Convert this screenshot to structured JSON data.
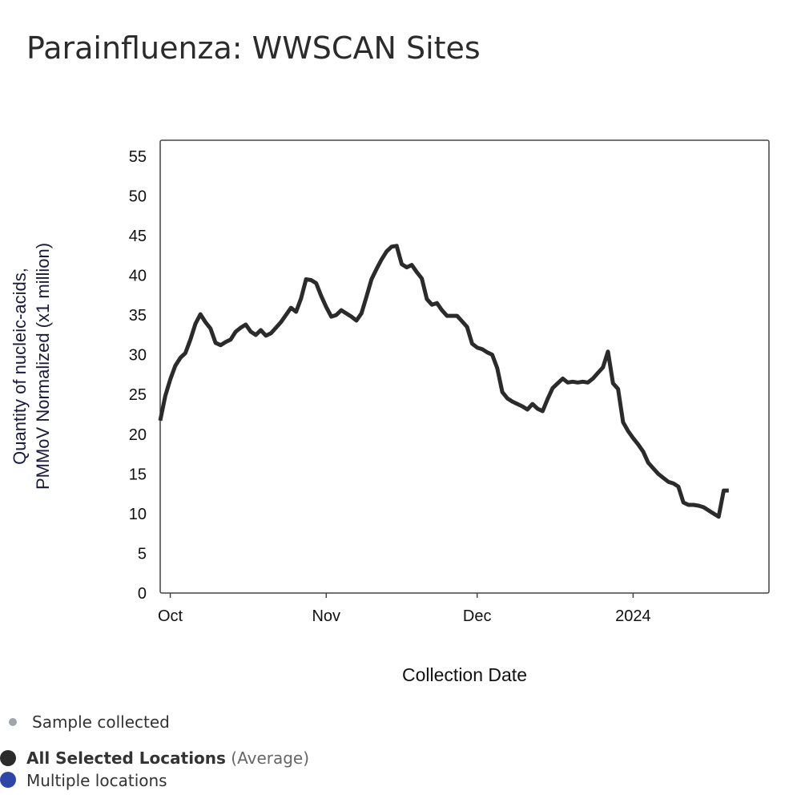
{
  "chart_data": {
    "type": "line",
    "title": "Parainfluenza: WWSCAN Sites",
    "xlabel": "Collection Date",
    "ylabel_lines": [
      "Quantity of nucleic-acids,",
      "PMMoV Normalized (x1 million)"
    ],
    "ylim": [
      0,
      57
    ],
    "yticks": [
      0,
      5,
      10,
      15,
      20,
      25,
      30,
      35,
      40,
      45,
      50,
      55
    ],
    "xlim": [
      "2023-09-29",
      "2024-01-28"
    ],
    "xticks": [
      {
        "label": "Oct",
        "date": "2023-10-01"
      },
      {
        "label": "Nov",
        "date": "2023-11-01"
      },
      {
        "label": "Dec",
        "date": "2023-12-01"
      },
      {
        "label": "2024",
        "date": "2024-01-01"
      }
    ],
    "grid": false,
    "series": [
      {
        "name": "All Selected Locations",
        "color": "#2b2b2b",
        "points": [
          [
            "2023-09-29",
            21.7
          ],
          [
            "2023-09-30",
            24.8
          ],
          [
            "2023-10-01",
            26.9
          ],
          [
            "2023-10-02",
            28.6
          ],
          [
            "2023-10-03",
            29.6
          ],
          [
            "2023-10-04",
            30.2
          ],
          [
            "2023-10-05",
            31.9
          ],
          [
            "2023-10-06",
            33.9
          ],
          [
            "2023-10-07",
            35.1
          ],
          [
            "2023-10-08",
            34.1
          ],
          [
            "2023-10-09",
            33.3
          ],
          [
            "2023-10-10",
            31.5
          ],
          [
            "2023-10-11",
            31.2
          ],
          [
            "2023-10-12",
            31.6
          ],
          [
            "2023-10-13",
            31.9
          ],
          [
            "2023-10-14",
            32.9
          ],
          [
            "2023-10-15",
            33.4
          ],
          [
            "2023-10-16",
            33.8
          ],
          [
            "2023-10-17",
            32.9
          ],
          [
            "2023-10-18",
            32.5
          ],
          [
            "2023-10-19",
            33.1
          ],
          [
            "2023-10-20",
            32.4
          ],
          [
            "2023-10-21",
            32.7
          ],
          [
            "2023-10-22",
            33.4
          ],
          [
            "2023-10-23",
            34.1
          ],
          [
            "2023-10-24",
            35.0
          ],
          [
            "2023-10-25",
            35.9
          ],
          [
            "2023-10-26",
            35.4
          ],
          [
            "2023-10-27",
            37.1
          ],
          [
            "2023-10-28",
            39.5
          ],
          [
            "2023-10-29",
            39.4
          ],
          [
            "2023-10-30",
            39.0
          ],
          [
            "2023-10-31",
            37.4
          ],
          [
            "2023-11-01",
            36.0
          ],
          [
            "2023-11-02",
            34.8
          ],
          [
            "2023-11-03",
            35.0
          ],
          [
            "2023-11-04",
            35.6
          ],
          [
            "2023-11-05",
            35.2
          ],
          [
            "2023-11-06",
            34.8
          ],
          [
            "2023-11-07",
            34.3
          ],
          [
            "2023-11-08",
            35.2
          ],
          [
            "2023-11-09",
            37.3
          ],
          [
            "2023-11-10",
            39.5
          ],
          [
            "2023-11-11",
            40.8
          ],
          [
            "2023-11-12",
            42.0
          ],
          [
            "2023-11-13",
            43.0
          ],
          [
            "2023-11-14",
            43.6
          ],
          [
            "2023-11-15",
            43.7
          ],
          [
            "2023-11-16",
            41.4
          ],
          [
            "2023-11-17",
            41.0
          ],
          [
            "2023-11-18",
            41.3
          ],
          [
            "2023-11-19",
            40.4
          ],
          [
            "2023-11-20",
            39.6
          ],
          [
            "2023-11-21",
            37.0
          ],
          [
            "2023-11-22",
            36.3
          ],
          [
            "2023-11-23",
            36.5
          ],
          [
            "2023-11-24",
            35.6
          ],
          [
            "2023-11-25",
            34.9
          ],
          [
            "2023-11-26",
            34.9
          ],
          [
            "2023-11-27",
            34.9
          ],
          [
            "2023-11-28",
            34.2
          ],
          [
            "2023-11-29",
            33.5
          ],
          [
            "2023-11-30",
            31.4
          ],
          [
            "2023-12-01",
            30.9
          ],
          [
            "2023-12-02",
            30.7
          ],
          [
            "2023-12-03",
            30.3
          ],
          [
            "2023-12-04",
            30.0
          ],
          [
            "2023-12-05",
            28.3
          ],
          [
            "2023-12-06",
            25.3
          ],
          [
            "2023-12-07",
            24.5
          ],
          [
            "2023-12-08",
            24.1
          ],
          [
            "2023-12-09",
            23.8
          ],
          [
            "2023-12-10",
            23.5
          ],
          [
            "2023-12-11",
            23.1
          ],
          [
            "2023-12-12",
            23.8
          ],
          [
            "2023-12-13",
            23.2
          ],
          [
            "2023-12-14",
            22.9
          ],
          [
            "2023-12-15",
            24.4
          ],
          [
            "2023-12-16",
            25.8
          ],
          [
            "2023-12-17",
            26.4
          ],
          [
            "2023-12-18",
            27.0
          ],
          [
            "2023-12-19",
            26.5
          ],
          [
            "2023-12-20",
            26.6
          ],
          [
            "2023-12-21",
            26.5
          ],
          [
            "2023-12-22",
            26.6
          ],
          [
            "2023-12-23",
            26.5
          ],
          [
            "2023-12-24",
            27.0
          ],
          [
            "2023-12-25",
            27.7
          ],
          [
            "2023-12-26",
            28.4
          ],
          [
            "2023-12-27",
            30.4
          ],
          [
            "2023-12-28",
            26.4
          ],
          [
            "2023-12-29",
            25.7
          ],
          [
            "2023-12-30",
            21.5
          ],
          [
            "2023-12-31",
            20.4
          ],
          [
            "2024-01-01",
            19.5
          ],
          [
            "2024-01-02",
            18.7
          ],
          [
            "2024-01-03",
            17.8
          ],
          [
            "2024-01-04",
            16.4
          ],
          [
            "2024-01-05",
            15.7
          ],
          [
            "2024-01-06",
            15.0
          ],
          [
            "2024-01-07",
            14.5
          ],
          [
            "2024-01-08",
            14.0
          ],
          [
            "2024-01-09",
            13.8
          ],
          [
            "2024-01-10",
            13.4
          ],
          [
            "2024-01-11",
            11.4
          ],
          [
            "2024-01-12",
            11.1
          ],
          [
            "2024-01-13",
            11.1
          ],
          [
            "2024-01-14",
            11.0
          ],
          [
            "2024-01-15",
            10.8
          ],
          [
            "2024-01-16",
            10.4
          ],
          [
            "2024-01-17",
            10.0
          ],
          [
            "2024-01-18",
            9.6
          ],
          [
            "2024-01-19",
            12.9
          ],
          [
            "2024-01-20",
            12.9
          ]
        ]
      }
    ]
  },
  "legend": {
    "sample_label": "Sample collected",
    "sample_color": "#a0a4ab",
    "avg_label_bold": "All Selected Locations",
    "avg_label_suffix": "(Average)",
    "avg_color": "#2b2b2b",
    "multi_label": "Multiple locations",
    "multi_color": "#2f46a8"
  }
}
